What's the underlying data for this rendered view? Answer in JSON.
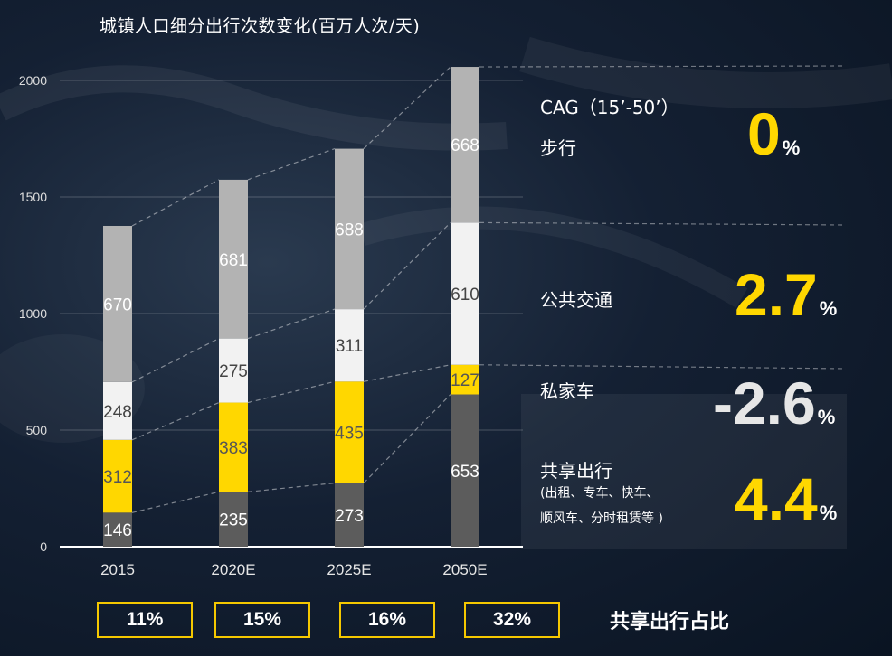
{
  "chart_data": {
    "type": "bar",
    "stacked": true,
    "title": "城镇人口细分出行次数变化(百万人次/天)",
    "categories": [
      "2015",
      "2020E",
      "2025E",
      "2050E"
    ],
    "ylim": [
      0,
      2000
    ],
    "yticks": [
      0,
      500,
      1000,
      1500,
      2000
    ],
    "grid": true,
    "series": [
      {
        "name": "共享出行",
        "color": "#5c5c5c",
        "label_color": "#ffffff",
        "values": [
          146,
          235,
          273,
          653
        ]
      },
      {
        "name": "私家车",
        "color": "#ffd700",
        "label_color": "#555555",
        "values": [
          312,
          383,
          435,
          127
        ]
      },
      {
        "name": "公共交通",
        "color": "#f2f2f2",
        "label_color": "#444444",
        "values": [
          248,
          275,
          311,
          610
        ]
      },
      {
        "name": "步行",
        "color": "#b3b3b3",
        "label_color": "#ffffff",
        "values": [
          670,
          681,
          688,
          668
        ]
      }
    ]
  },
  "cagr_panel": {
    "header": "CAG（15’-50’）",
    "percent_sign": "%",
    "rows": [
      {
        "label": "步行",
        "value": "0",
        "color": "#ffd700"
      },
      {
        "label": "公共交通",
        "value": "2.7",
        "color": "#ffd700"
      },
      {
        "label": "私家车",
        "value": "-2.6",
        "color": "#e6e6e6"
      },
      {
        "label": "共享出行",
        "sub1": "(出租、专车、快车、",
        "sub2": "顺风车、分时租赁等 )",
        "value": "4.4",
        "color": "#ffd700"
      }
    ]
  },
  "share": {
    "title": "共享出行占比",
    "values": [
      "11%",
      "15%",
      "16%",
      "32%"
    ],
    "border_color": "#f5c800"
  }
}
